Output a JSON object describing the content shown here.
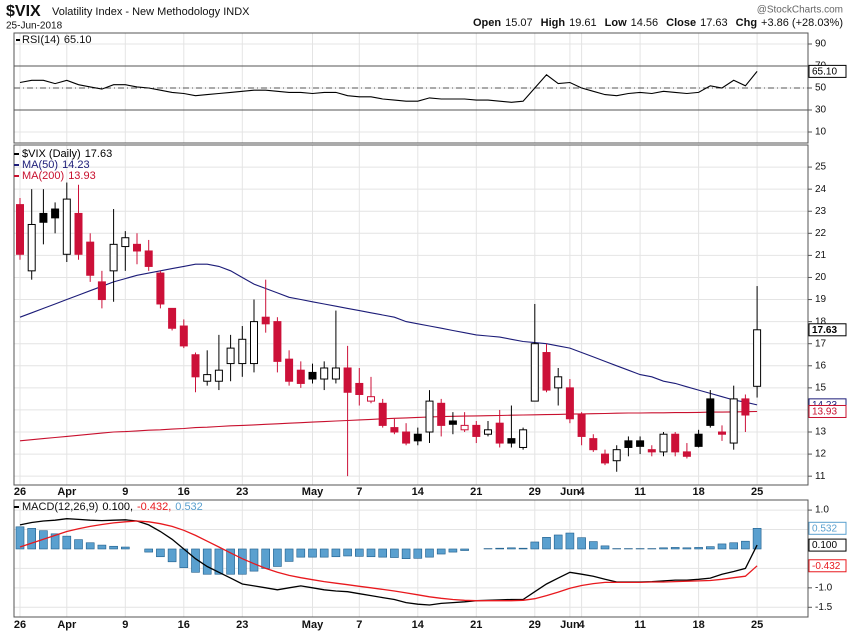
{
  "header": {
    "symbol": "$VIX",
    "name": "Volatility Index - New Methodology INDX",
    "date": "25-Jun-2018",
    "credit": "@StockCharts.com",
    "quote": [
      {
        "label": "Open",
        "value": "15.07"
      },
      {
        "label": "High",
        "value": "19.61"
      },
      {
        "label": "Low",
        "value": "14.56"
      },
      {
        "label": "Close",
        "value": "17.63"
      },
      {
        "label": "Chg",
        "value": "+3.86 (+28.03%)"
      }
    ]
  },
  "chart_data": [
    {
      "type": "line",
      "ylim": [
        0,
        100
      ],
      "yticks": [
        90,
        70,
        50,
        30,
        10
      ],
      "grid": true,
      "reference_lines": [
        {
          "value": 70,
          "style": "solid"
        },
        {
          "value": 50,
          "style": "dashed"
        },
        {
          "value": 30,
          "style": "solid"
        }
      ],
      "series": [
        {
          "name": "RSI(14)",
          "last_label": "65.10",
          "color": "#000000",
          "values": [
            55,
            57,
            57,
            54,
            57,
            53,
            51,
            49,
            53,
            53,
            51,
            50,
            48,
            46,
            45,
            43,
            44,
            45,
            46,
            47,
            48,
            48,
            47,
            46,
            46,
            45,
            46,
            46,
            43,
            42,
            42,
            40,
            39,
            38,
            38,
            41,
            40,
            40,
            40,
            39,
            39,
            38,
            37,
            38,
            50,
            62,
            54,
            55,
            50,
            47,
            44,
            43,
            45,
            46,
            45,
            47,
            46,
            45,
            46,
            52,
            50,
            57,
            52,
            65.1
          ]
        }
      ]
    },
    {
      "type": "candlestick",
      "ylim": [
        10.6,
        26
      ],
      "yticks": [
        11,
        12,
        13,
        14,
        15,
        16,
        17,
        18,
        19,
        20,
        21,
        22,
        23,
        24,
        25
      ],
      "grid": true,
      "up_color": "#000000",
      "down_color": "#cc1038",
      "categories": [
        "26",
        null,
        null,
        null,
        "Apr",
        null,
        null,
        null,
        null,
        "9",
        null,
        null,
        null,
        null,
        "16",
        null,
        null,
        null,
        null,
        "23",
        null,
        null,
        null,
        null,
        null,
        "May",
        null,
        null,
        null,
        "7",
        null,
        null,
        null,
        null,
        "14",
        null,
        null,
        null,
        null,
        "21",
        null,
        null,
        null,
        null,
        "29",
        null,
        null,
        "Jun",
        "4",
        null,
        null,
        null,
        null,
        "11",
        null,
        null,
        null,
        null,
        "18",
        null,
        null,
        null,
        null,
        "25"
      ],
      "candles": {
        "name": "$VIX (Daily)",
        "last_label": "17.63",
        "open": [
          23.3,
          20.3,
          22.9,
          23.1,
          21.05,
          22.9,
          21.6,
          19.8,
          20.3,
          21.4,
          21.5,
          21.2,
          20.2,
          18.6,
          17.8,
          16.5,
          15.3,
          15.3,
          16.1,
          16.1,
          16.1,
          18.2,
          18.0,
          16.3,
          15.8,
          15.7,
          15.4,
          15.4,
          15.9,
          15.2,
          14.4,
          14.3,
          13.2,
          13.0,
          12.9,
          13.0,
          14.3,
          13.5,
          13.1,
          13.3,
          12.9,
          13.4,
          12.7,
          12.3,
          14.4,
          16.6,
          15.0,
          15.0,
          13.8,
          12.7,
          12.0,
          11.7,
          12.6,
          12.6,
          12.2,
          12.1,
          12.9,
          12.1,
          12.9,
          14.5,
          13.0,
          12.5,
          14.5,
          15.07
        ],
        "high": [
          23.6,
          24.0,
          24.0,
          23.4,
          24.3,
          24.2,
          22.0,
          20.3,
          23.1,
          22.1,
          22.0,
          21.7,
          20.3,
          18.6,
          18.1,
          16.6,
          16.7,
          17.4,
          17.4,
          17.8,
          19.0,
          19.9,
          18.2,
          16.7,
          16.2,
          16.1,
          16.2,
          18.5,
          16.9,
          15.9,
          15.5,
          14.5,
          13.6,
          13.4,
          13.2,
          14.9,
          14.5,
          13.9,
          13.9,
          13.5,
          13.5,
          14.0,
          14.2,
          13.2,
          18.8,
          17.0,
          15.9,
          15.4,
          13.9,
          12.9,
          12.2,
          12.4,
          12.8,
          12.8,
          12.4,
          13.0,
          13.0,
          12.5,
          13.1,
          14.9,
          13.3,
          15.1,
          14.7,
          19.61
        ],
        "low": [
          20.8,
          19.9,
          21.5,
          22.0,
          20.7,
          20.8,
          19.8,
          18.6,
          18.9,
          20.3,
          20.6,
          20.3,
          18.6,
          17.6,
          16.8,
          14.8,
          15.1,
          14.9,
          15.3,
          15.5,
          15.7,
          17.5,
          15.7,
          15.1,
          15.0,
          15.2,
          14.9,
          15.2,
          11.0,
          14.2,
          14.3,
          13.2,
          12.9,
          12.4,
          12.4,
          12.5,
          12.8,
          12.9,
          13.0,
          12.5,
          12.8,
          12.3,
          12.3,
          12.2,
          14.4,
          14.8,
          14.2,
          13.4,
          12.4,
          12.1,
          11.5,
          11.2,
          11.9,
          12.0,
          11.9,
          11.9,
          11.9,
          11.8,
          12.3,
          13.2,
          12.6,
          12.2,
          13.0,
          14.56
        ],
        "close": [
          21.05,
          22.4,
          22.5,
          22.7,
          23.55,
          21.05,
          20.1,
          19.0,
          21.5,
          21.8,
          21.2,
          20.5,
          18.8,
          17.7,
          16.9,
          15.5,
          15.6,
          15.8,
          16.8,
          17.2,
          18.0,
          17.9,
          16.2,
          15.3,
          15.2,
          15.4,
          15.9,
          15.9,
          14.8,
          14.7,
          14.6,
          13.3,
          13.0,
          12.5,
          12.6,
          14.4,
          13.3,
          13.35,
          13.3,
          12.8,
          13.1,
          12.5,
          12.5,
          13.1,
          17.0,
          14.9,
          15.5,
          13.6,
          12.8,
          12.2,
          11.6,
          12.2,
          12.3,
          12.35,
          12.1,
          12.9,
          12.1,
          11.9,
          12.35,
          13.3,
          12.9,
          14.5,
          13.77,
          17.63
        ]
      },
      "series": [
        {
          "name": "MA(50)",
          "last_label": "14.23",
          "color": "#1c1c78",
          "values": [
            18.2,
            18.4,
            18.6,
            18.8,
            19.0,
            19.2,
            19.4,
            19.6,
            19.8,
            19.95,
            20.1,
            20.2,
            20.3,
            20.4,
            20.5,
            20.6,
            20.6,
            20.5,
            20.3,
            20.0,
            19.7,
            19.5,
            19.3,
            19.1,
            19.0,
            18.9,
            18.8,
            18.7,
            18.6,
            18.5,
            18.4,
            18.3,
            18.2,
            18.0,
            17.9,
            17.8,
            17.7,
            17.6,
            17.5,
            17.4,
            17.35,
            17.3,
            17.2,
            17.1,
            17.05,
            17.0,
            16.9,
            16.8,
            16.6,
            16.4,
            16.2,
            16.0,
            15.8,
            15.6,
            15.5,
            15.3,
            15.2,
            15.05,
            14.9,
            14.75,
            14.6,
            14.45,
            14.35,
            14.23
          ]
        },
        {
          "name": "MA(200)",
          "last_label": "13.93",
          "color": "#c8102e",
          "values": [
            12.6,
            12.65,
            12.7,
            12.75,
            12.8,
            12.85,
            12.9,
            12.95,
            13.0,
            13.02,
            13.05,
            13.08,
            13.1,
            13.13,
            13.16,
            13.2,
            13.22,
            13.25,
            13.28,
            13.3,
            13.32,
            13.35,
            13.37,
            13.4,
            13.42,
            13.45,
            13.47,
            13.5,
            13.52,
            13.55,
            13.57,
            13.6,
            13.62,
            13.64,
            13.66,
            13.68,
            13.7,
            13.71,
            13.72,
            13.73,
            13.74,
            13.75,
            13.76,
            13.77,
            13.78,
            13.79,
            13.8,
            13.81,
            13.82,
            13.83,
            13.84,
            13.85,
            13.86,
            13.86,
            13.87,
            13.87,
            13.88,
            13.88,
            13.89,
            13.9,
            13.9,
            13.91,
            13.92,
            13.93
          ]
        }
      ]
    },
    {
      "type": "combo",
      "ylim": [
        -1.75,
        1.26
      ],
      "yticks": [
        {
          "value": 1.0,
          "label": "1.0"
        },
        {
          "value": 0.5,
          "label": "0.5"
        },
        {
          "value": -0.5,
          "label": "-0.5"
        },
        {
          "value": -1.0,
          "label": "-1.0"
        },
        {
          "value": -1.5,
          "label": "-1.5"
        }
      ],
      "grid": true,
      "categories": [
        "26",
        null,
        null,
        null,
        "Apr",
        null,
        null,
        null,
        null,
        "9",
        null,
        null,
        null,
        null,
        "16",
        null,
        null,
        null,
        null,
        "23",
        null,
        null,
        null,
        null,
        null,
        "May",
        null,
        null,
        null,
        "7",
        null,
        null,
        null,
        null,
        "14",
        null,
        null,
        null,
        null,
        "21",
        null,
        null,
        null,
        null,
        "29",
        null,
        null,
        "Jun",
        "4",
        null,
        null,
        null,
        null,
        "11",
        null,
        null,
        null,
        null,
        "18",
        null,
        null,
        null,
        null,
        "25"
      ],
      "legend": {
        "title": "MACD(12,26,9)",
        "items": [
          "0.100,",
          "-0.432,",
          "0.532"
        ]
      },
      "series": [
        {
          "kind": "bar",
          "last_label": "0.532",
          "color": "#5aa0cf",
          "values": [
            0.57,
            0.53,
            0.47,
            0.39,
            0.33,
            0.24,
            0.16,
            0.1,
            0.07,
            0.05,
            0.0,
            -0.08,
            -0.2,
            -0.33,
            -0.48,
            -0.6,
            -0.65,
            -0.65,
            -0.65,
            -0.65,
            -0.57,
            -0.5,
            -0.45,
            -0.32,
            -0.21,
            -0.21,
            -0.21,
            -0.2,
            -0.18,
            -0.19,
            -0.2,
            -0.21,
            -0.22,
            -0.25,
            -0.24,
            -0.21,
            -0.13,
            -0.08,
            -0.04,
            0.0,
            0.01,
            0.02,
            0.03,
            0.02,
            0.18,
            0.3,
            0.36,
            0.41,
            0.29,
            0.19,
            0.08,
            0.01,
            0.01,
            0.01,
            0.01,
            0.03,
            0.04,
            0.03,
            0.04,
            0.06,
            0.13,
            0.16,
            0.2,
            0.532
          ]
        },
        {
          "kind": "line",
          "last_label": "0.100",
          "color": "#000000",
          "values": [
            0.62,
            0.68,
            0.72,
            0.74,
            0.78,
            0.76,
            0.74,
            0.73,
            0.74,
            0.75,
            0.72,
            0.62,
            0.45,
            0.25,
            0.0,
            -0.25,
            -0.45,
            -0.6,
            -0.75,
            -0.9,
            -0.95,
            -1.0,
            -1.05,
            -1.0,
            -0.95,
            -1.0,
            -1.05,
            -1.08,
            -1.1,
            -1.15,
            -1.2,
            -1.25,
            -1.3,
            -1.38,
            -1.42,
            -1.44,
            -1.4,
            -1.38,
            -1.36,
            -1.33,
            -1.32,
            -1.31,
            -1.3,
            -1.3,
            -1.1,
            -0.9,
            -0.75,
            -0.6,
            -0.65,
            -0.7,
            -0.78,
            -0.85,
            -0.85,
            -0.85,
            -0.84,
            -0.82,
            -0.8,
            -0.8,
            -0.78,
            -0.75,
            -0.65,
            -0.58,
            -0.5,
            0.1
          ]
        },
        {
          "kind": "line",
          "last_label": "-0.432",
          "color": "#e8191e",
          "values": [
            0.05,
            0.15,
            0.25,
            0.35,
            0.45,
            0.52,
            0.58,
            0.63,
            0.67,
            0.7,
            0.72,
            0.7,
            0.65,
            0.58,
            0.48,
            0.35,
            0.2,
            0.05,
            -0.1,
            -0.25,
            -0.38,
            -0.5,
            -0.6,
            -0.68,
            -0.74,
            -0.79,
            -0.84,
            -0.88,
            -0.92,
            -0.96,
            -1.0,
            -1.04,
            -1.08,
            -1.13,
            -1.18,
            -1.23,
            -1.27,
            -1.3,
            -1.32,
            -1.33,
            -1.33,
            -1.33,
            -1.33,
            -1.32,
            -1.28,
            -1.2,
            -1.11,
            -1.01,
            -0.94,
            -0.89,
            -0.86,
            -0.86,
            -0.86,
            -0.86,
            -0.85,
            -0.85,
            -0.84,
            -0.83,
            -0.82,
            -0.81,
            -0.78,
            -0.74,
            -0.7,
            -0.432
          ]
        }
      ]
    }
  ]
}
